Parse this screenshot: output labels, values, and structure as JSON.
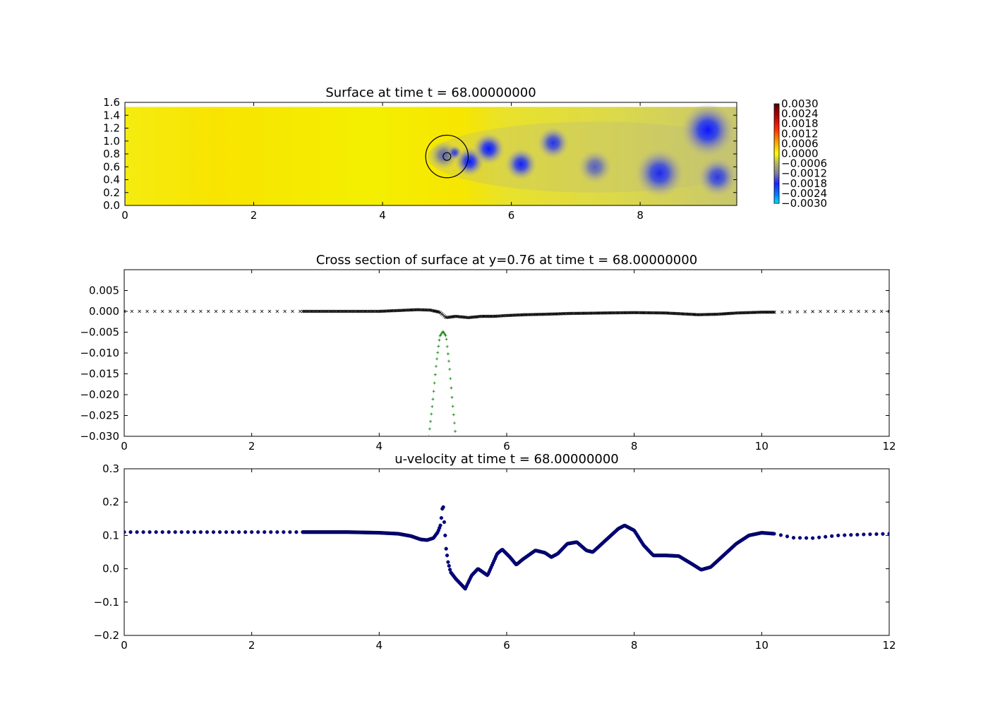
{
  "chart_data": [
    {
      "type": "heatmap",
      "title": "Surface at time t =    68.00000000",
      "xlabel": "",
      "ylabel": "",
      "xlim": [
        0,
        9.5
      ],
      "ylim": [
        0,
        1.6
      ],
      "xticks": [
        "0",
        "2",
        "4",
        "6",
        "8"
      ],
      "yticks": [
        "0.0",
        "0.2",
        "0.4",
        "0.6",
        "0.8",
        "1.0",
        "1.2",
        "1.4",
        "1.6"
      ],
      "colorbar_ticks": [
        "0.0030",
        "0.0024",
        "0.0018",
        "0.0012",
        "0.0006",
        "0.0000",
        "−0.0006",
        "−0.0012",
        "−0.0018",
        "−0.0024",
        "−0.0030"
      ],
      "colorbar_range": [
        -0.003,
        0.003
      ],
      "background_color": "#f5f000",
      "depressions": [
        {
          "x": 4.95,
          "y": 0.78,
          "r": 0.12,
          "depth": 0.6
        },
        {
          "x": 5.12,
          "y": 0.82,
          "r": 0.06,
          "depth": 0.8
        },
        {
          "x": 5.35,
          "y": 0.68,
          "r": 0.12,
          "depth": 1.0
        },
        {
          "x": 5.65,
          "y": 0.88,
          "r": 0.13,
          "depth": 1.0
        },
        {
          "x": 6.15,
          "y": 0.64,
          "r": 0.13,
          "depth": 0.95
        },
        {
          "x": 6.65,
          "y": 0.97,
          "r": 0.13,
          "depth": 0.85
        },
        {
          "x": 7.3,
          "y": 0.6,
          "r": 0.14,
          "depth": 0.6
        },
        {
          "x": 8.3,
          "y": 0.5,
          "r": 0.2,
          "depth": 0.9
        },
        {
          "x": 9.05,
          "y": 1.17,
          "r": 0.22,
          "depth": 1.0
        },
        {
          "x": 9.2,
          "y": 0.44,
          "r": 0.16,
          "depth": 0.8
        }
      ],
      "circles": [
        {
          "x": 5.0,
          "y": 0.76,
          "r": 0.33
        },
        {
          "x": 5.0,
          "y": 0.76,
          "r": 0.06
        }
      ]
    },
    {
      "type": "scatter",
      "title": "Cross section of surface at y=0.76 at time t =    68.00000000",
      "xlabel": "",
      "ylabel": "",
      "xlim": [
        0,
        12
      ],
      "ylim": [
        -0.03,
        0.01
      ],
      "xticks": [
        "0",
        "2",
        "4",
        "6",
        "8",
        "10",
        "12"
      ],
      "yticks": [
        "−0.030",
        "−0.025",
        "−0.020",
        "−0.015",
        "−0.010",
        "−0.005",
        "0.000",
        "0.005"
      ],
      "series": [
        {
          "marker": "x",
          "color": "#000000",
          "x": [
            0,
            2.8,
            3.5,
            4.0,
            4.3,
            4.6,
            4.8,
            4.95,
            5.05,
            5.2,
            5.4,
            5.6,
            5.8,
            6.0,
            6.3,
            6.6,
            7.0,
            7.5,
            8.0,
            8.5,
            9.0,
            9.3,
            9.6,
            10.0,
            10.2,
            11.0,
            12.0
          ],
          "y": [
            0.0,
            0.0,
            0.0,
            0.0,
            0.0002,
            0.0004,
            0.0003,
            -0.0002,
            -0.0015,
            -0.0012,
            -0.0015,
            -0.0012,
            -0.0012,
            -0.001,
            -0.0008,
            -0.0007,
            -0.0005,
            -0.0004,
            -0.0003,
            -0.0004,
            -0.0008,
            -0.0007,
            -0.0004,
            -0.0002,
            -0.0002,
            0.0,
            0.0
          ]
        },
        {
          "marker": "+",
          "color": "#008000",
          "x": [
            4.78,
            4.85,
            4.9,
            4.95,
            5.0,
            5.05,
            5.1,
            5.15,
            5.2
          ],
          "y": [
            -0.03,
            -0.02,
            -0.012,
            -0.006,
            -0.0048,
            -0.006,
            -0.013,
            -0.022,
            -0.03
          ]
        }
      ]
    },
    {
      "type": "scatter",
      "title": "u-velocity at time t =    68.00000000",
      "xlabel": "",
      "ylabel": "",
      "xlim": [
        0,
        12
      ],
      "ylim": [
        -0.2,
        0.3
      ],
      "xticks": [
        "0",
        "2",
        "4",
        "6",
        "8",
        "10",
        "12"
      ],
      "yticks": [
        "−0.2",
        "−0.1",
        "0.0",
        "0.1",
        "0.2",
        "0.3"
      ],
      "series": [
        {
          "marker": "o",
          "color": "#00008b",
          "x": [
            0,
            1,
            2,
            2.8,
            3.5,
            4.0,
            4.3,
            4.5,
            4.65,
            4.75,
            4.85,
            4.92,
            4.96,
            4.98,
            5.0,
            5.02,
            5.05,
            5.08,
            5.12,
            5.2,
            5.3,
            5.35,
            5.45,
            5.55,
            5.7,
            5.85,
            5.93,
            6.05,
            6.15,
            6.25,
            6.45,
            6.6,
            6.7,
            6.8,
            6.95,
            7.1,
            7.25,
            7.35,
            7.55,
            7.75,
            7.85,
            8.0,
            8.15,
            8.3,
            8.5,
            8.7,
            8.9,
            9.05,
            9.2,
            9.4,
            9.6,
            9.8,
            10.0,
            10.2,
            10.5,
            10.8,
            11.2,
            11.6,
            12.0
          ],
          "y": [
            0.11,
            0.11,
            0.11,
            0.11,
            0.11,
            0.108,
            0.105,
            0.098,
            0.088,
            0.086,
            0.092,
            0.11,
            0.13,
            0.16,
            0.2,
            0.14,
            0.06,
            0.02,
            -0.01,
            -0.03,
            -0.05,
            -0.06,
            -0.02,
            0.0,
            -0.02,
            0.045,
            0.058,
            0.035,
            0.012,
            0.028,
            0.055,
            0.048,
            0.035,
            0.045,
            0.075,
            0.08,
            0.055,
            0.05,
            0.085,
            0.12,
            0.13,
            0.115,
            0.07,
            0.04,
            0.04,
            0.038,
            0.015,
            -0.003,
            0.005,
            0.04,
            0.075,
            0.1,
            0.108,
            0.105,
            0.093,
            0.092,
            0.1,
            0.103,
            0.105
          ]
        }
      ]
    }
  ]
}
